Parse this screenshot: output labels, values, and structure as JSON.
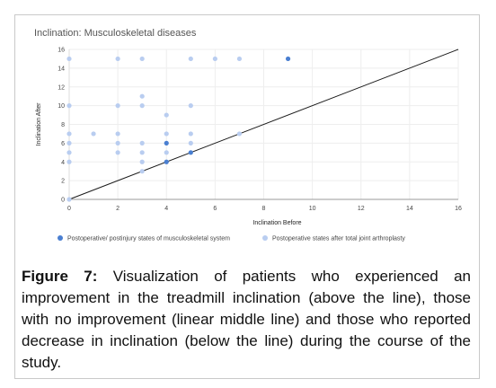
{
  "chart_data": {
    "type": "scatter",
    "title": "Inclination: Musculoskeletal diseases",
    "xlabel": "Inclination Before",
    "ylabel": "Inclination After",
    "xlim": [
      0,
      16
    ],
    "ylim": [
      0,
      16
    ],
    "x_ticks": [
      0,
      2,
      4,
      6,
      8,
      10,
      12,
      14,
      16
    ],
    "y_ticks": [
      0,
      2,
      4,
      6,
      8,
      10,
      12,
      14,
      16
    ],
    "grid": true,
    "legend_position": "bottom",
    "reference_line": {
      "from": [
        0,
        0
      ],
      "to": [
        16,
        16
      ]
    },
    "series": [
      {
        "name": "Postoperative/ postinjury states of musculoskeletal system",
        "color": "#4a7fd1",
        "points": [
          [
            4,
            6
          ],
          [
            4,
            4
          ],
          [
            5,
            5
          ],
          [
            9,
            15
          ]
        ]
      },
      {
        "name": "Postoperative states after total joint arthroplasty",
        "color": "#b9cdf0",
        "points": [
          [
            0,
            15
          ],
          [
            0,
            10
          ],
          [
            0,
            7
          ],
          [
            0,
            6
          ],
          [
            0,
            5
          ],
          [
            0,
            4
          ],
          [
            0,
            0
          ],
          [
            1,
            7
          ],
          [
            2,
            15
          ],
          [
            2,
            10
          ],
          [
            2,
            7
          ],
          [
            2,
            6
          ],
          [
            2,
            5
          ],
          [
            3,
            15
          ],
          [
            3,
            11
          ],
          [
            3,
            10
          ],
          [
            3,
            6
          ],
          [
            3,
            5
          ],
          [
            3,
            4
          ],
          [
            3,
            3
          ],
          [
            4,
            9
          ],
          [
            4,
            7
          ],
          [
            4,
            5
          ],
          [
            5,
            15
          ],
          [
            5,
            10
          ],
          [
            5,
            7
          ],
          [
            5,
            6
          ],
          [
            6,
            15
          ],
          [
            7,
            15
          ],
          [
            7,
            7
          ]
        ]
      }
    ]
  },
  "caption": {
    "label": "Figure 7:",
    "text": "Visualization of patients who experienced an improvement in the treadmill inclination (above the line), those with no improvement (linear middle line) and those who reported decrease in inclination (below the line) during the course of the study."
  }
}
